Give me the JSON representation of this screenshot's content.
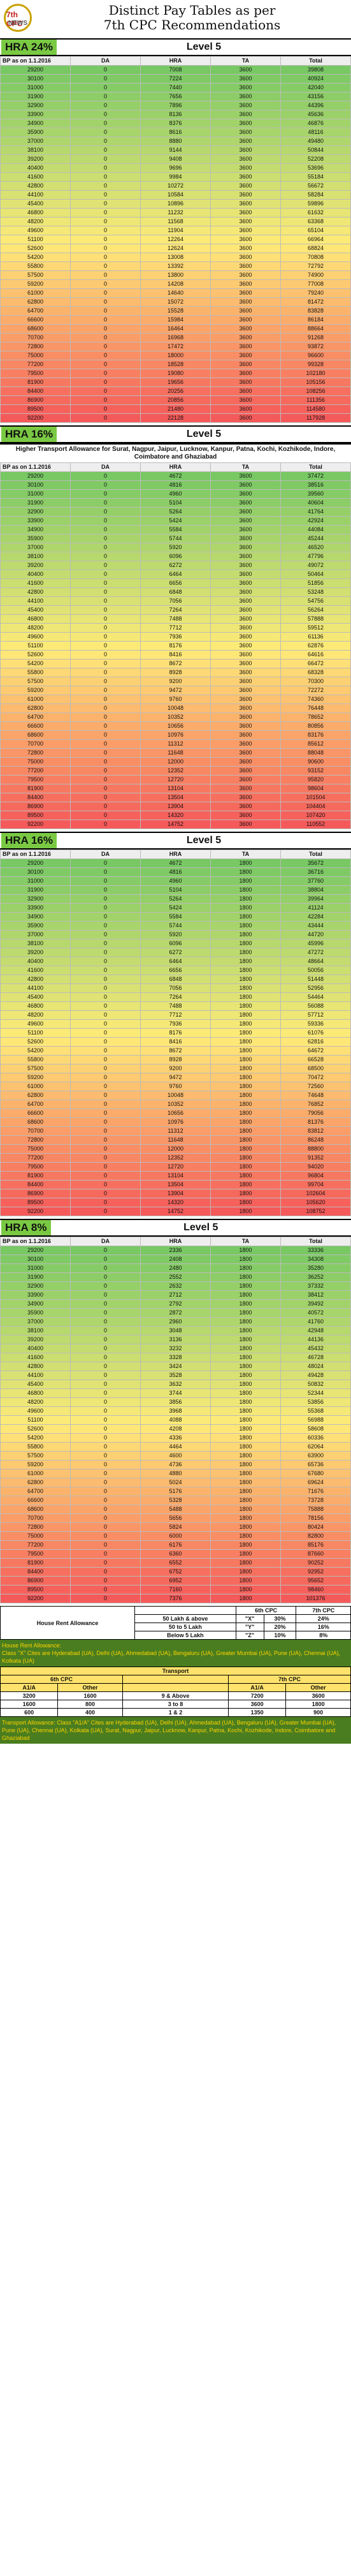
{
  "header": {
    "logo_text": "7th CPC",
    "logo_sub": "NEWS",
    "title_line1": "Distinct Pay Tables as per",
    "title_line2": "7th CPC Recommendations"
  },
  "columns": [
    "BP as on 1.1.2016",
    "DA",
    "HRA",
    "TA",
    "Total"
  ],
  "sections": [
    {
      "hra": "HRA 24%",
      "level": "Level 5",
      "ta": "3600",
      "caption": "",
      "hra_rate": 0.24
    },
    {
      "hra": "HRA 16%",
      "level": "Level 5",
      "ta": "3600",
      "caption": "Higher Transport Allowance for Surat, Nagpur, Jaipur, Lucknow, Kanpur, Patna, Kochi, Kozhikode, Indore, Coimbatore and Ghaziabad",
      "hra_rate": 0.16
    },
    {
      "hra": "HRA 16%",
      "level": "Level 5",
      "ta": "1800",
      "caption": "",
      "hra_rate": 0.16
    },
    {
      "hra": "HRA 8%",
      "level": "Level 5",
      "ta": "1800",
      "caption": "",
      "hra_rate": 0.08
    }
  ],
  "basic_pay": [
    29200,
    30100,
    31000,
    31900,
    32900,
    33900,
    34900,
    35900,
    37000,
    38100,
    39200,
    40400,
    41600,
    42800,
    44100,
    45400,
    46800,
    48200,
    49600,
    51100,
    52600,
    54200,
    55800,
    57500,
    59200,
    61000,
    62800,
    64700,
    66600,
    68600,
    70700,
    72800,
    75000,
    77200,
    79500,
    81900,
    84400,
    86900,
    89500,
    92200
  ],
  "da": "0",
  "footer": {
    "hra_head": "House Rent Allowance",
    "sixth": "6th CPC",
    "seventh": "7th CPC",
    "rows": [
      {
        "pop": "50 Lakh & above",
        "cls": "\"X\"",
        "six": "30%",
        "seven": "24%"
      },
      {
        "pop": "50 to 5 Lakh",
        "cls": "\"Y\"",
        "six": "20%",
        "seven": "16%"
      },
      {
        "pop": "Below 5 Lakh",
        "cls": "\"Z\"",
        "six": "10%",
        "seven": "8%"
      }
    ],
    "note1": "House Rent Allowance:",
    "note2": "Class \"X\" Cites are Hyderabad (UA), Delhi (UA), Ahmedabad (UA), Bengaluru (UA), Greater Mumbai (UA), Pune (UA), Chennai (UA), Kolkata (UA)",
    "transport": "Transport",
    "ta_cols": [
      "A1/A",
      "Other",
      "A1/A",
      "Other"
    ],
    "ta_rows": [
      [
        "3200",
        "1600",
        "9 & Above",
        "7200",
        "3600"
      ],
      [
        "1600",
        "800",
        "3 to 8",
        "3600",
        "1800"
      ],
      [
        "600",
        "400",
        "1 & 2",
        "1350",
        "900"
      ]
    ],
    "note3": "Transport Allowance: Class \"A1/A\" Cites are Hyderabad (UA), Delhi (UA), Ahmedabad (UA), Bengaluru (UA), Greater Mumbai (UA), Pune (UA), Chennai (UA), Kolkata (UA), Surat, Nagpur, Jaipur, Lucknow, Kanpur, Patna, Kochi, Kozhikode, Indore, Coimbatore and Ghaziabad"
  }
}
